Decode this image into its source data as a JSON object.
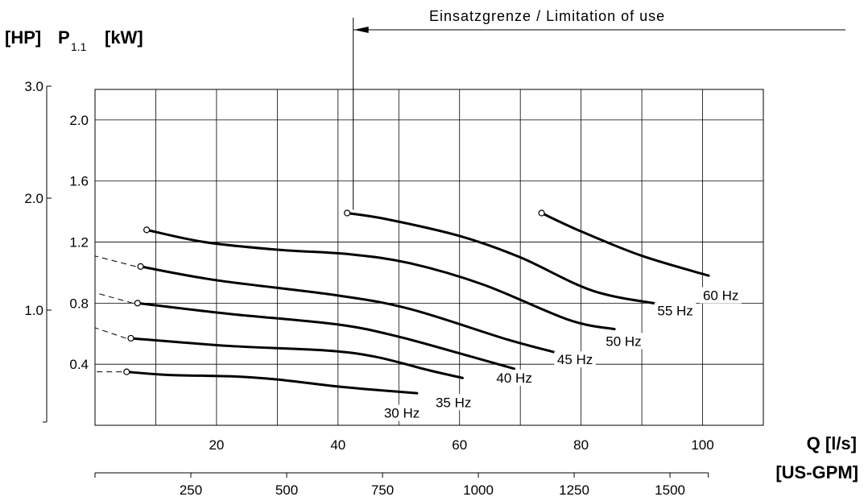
{
  "chart_data": {
    "type": "line",
    "title": "",
    "ylabel": {
      "left": "[HP]",
      "middle": "P",
      "subscript": "1.1",
      "right": "[kW]"
    },
    "xlabel": {
      "primary": "Q  [l/s]",
      "secondary": "[US-GPM]"
    },
    "annotation": "Einsatzgrenze / Limitation of use",
    "limit_q": 42.5,
    "xlim": [
      0,
      110
    ],
    "ylim_kw": [
      0,
      2.2
    ],
    "kw_ticks": [
      "0.4",
      "0.8",
      "1.2",
      "1.6",
      "2.0"
    ],
    "hp_ticks": [
      "1.0",
      "2.0",
      "3.0"
    ],
    "hp_tick_values": [
      1.0,
      2.0,
      3.0
    ],
    "q_ticks": [
      "20",
      "40",
      "60",
      "80",
      "100"
    ],
    "gpm_ticks": [
      "250",
      "500",
      "750",
      "1000",
      "1250",
      "1500"
    ],
    "grid": true,
    "series": [
      {
        "name": "30 Hz",
        "x": [
          5.2,
          12,
          23,
          30,
          41,
          53
        ],
        "y": [
          0.35,
          0.33,
          0.32,
          0.3,
          0.25,
          0.21
        ]
      },
      {
        "name": "35 Hz",
        "x": [
          5.9,
          22,
          38,
          46,
          55,
          60.5
        ],
        "y": [
          0.57,
          0.52,
          0.49,
          0.45,
          0.36,
          0.31
        ]
      },
      {
        "name": "40 Hz",
        "x": [
          7,
          22,
          40,
          50,
          61,
          69
        ],
        "y": [
          0.8,
          0.73,
          0.66,
          0.58,
          0.46,
          0.37
        ]
      },
      {
        "name": "45 Hz",
        "x": [
          7.5,
          20,
          40,
          52,
          68,
          77.5
        ],
        "y": [
          1.04,
          0.95,
          0.85,
          0.76,
          0.56,
          0.46
        ]
      },
      {
        "name": "50 Hz",
        "x": [
          8.5,
          18,
          30,
          42,
          52,
          64,
          78,
          85.5
        ],
        "y": [
          1.28,
          1.2,
          1.15,
          1.12,
          1.06,
          0.92,
          0.69,
          0.63
        ]
      },
      {
        "name": "55 Hz",
        "x": [
          41.5,
          48,
          60,
          70,
          82,
          93.5
        ],
        "y": [
          1.39,
          1.35,
          1.24,
          1.1,
          0.88,
          0.79
        ]
      },
      {
        "name": "60 Hz",
        "x": [
          73.5,
          80,
          90,
          101
        ],
        "y": [
          1.39,
          1.27,
          1.11,
          0.98
        ]
      }
    ],
    "dashed_extensions": [
      {
        "from_y": 0.35
      },
      {
        "from_y": 0.57
      },
      {
        "from_y": 0.8
      },
      {
        "from_y": 1.04
      }
    ],
    "labels": [
      {
        "text": "30 Hz",
        "x": 50.5,
        "y": 0.05
      },
      {
        "text": "35 Hz",
        "x": 59,
        "y": 0.12
      },
      {
        "text": "40 Hz",
        "x": 69,
        "y": 0.28
      },
      {
        "text": "45 Hz",
        "x": 79,
        "y": 0.4
      },
      {
        "text": "50 Hz",
        "x": 87,
        "y": 0.52
      },
      {
        "text": "55 Hz",
        "x": 95.5,
        "y": 0.72
      },
      {
        "text": "60 Hz",
        "x": 103,
        "y": 0.82
      }
    ]
  }
}
